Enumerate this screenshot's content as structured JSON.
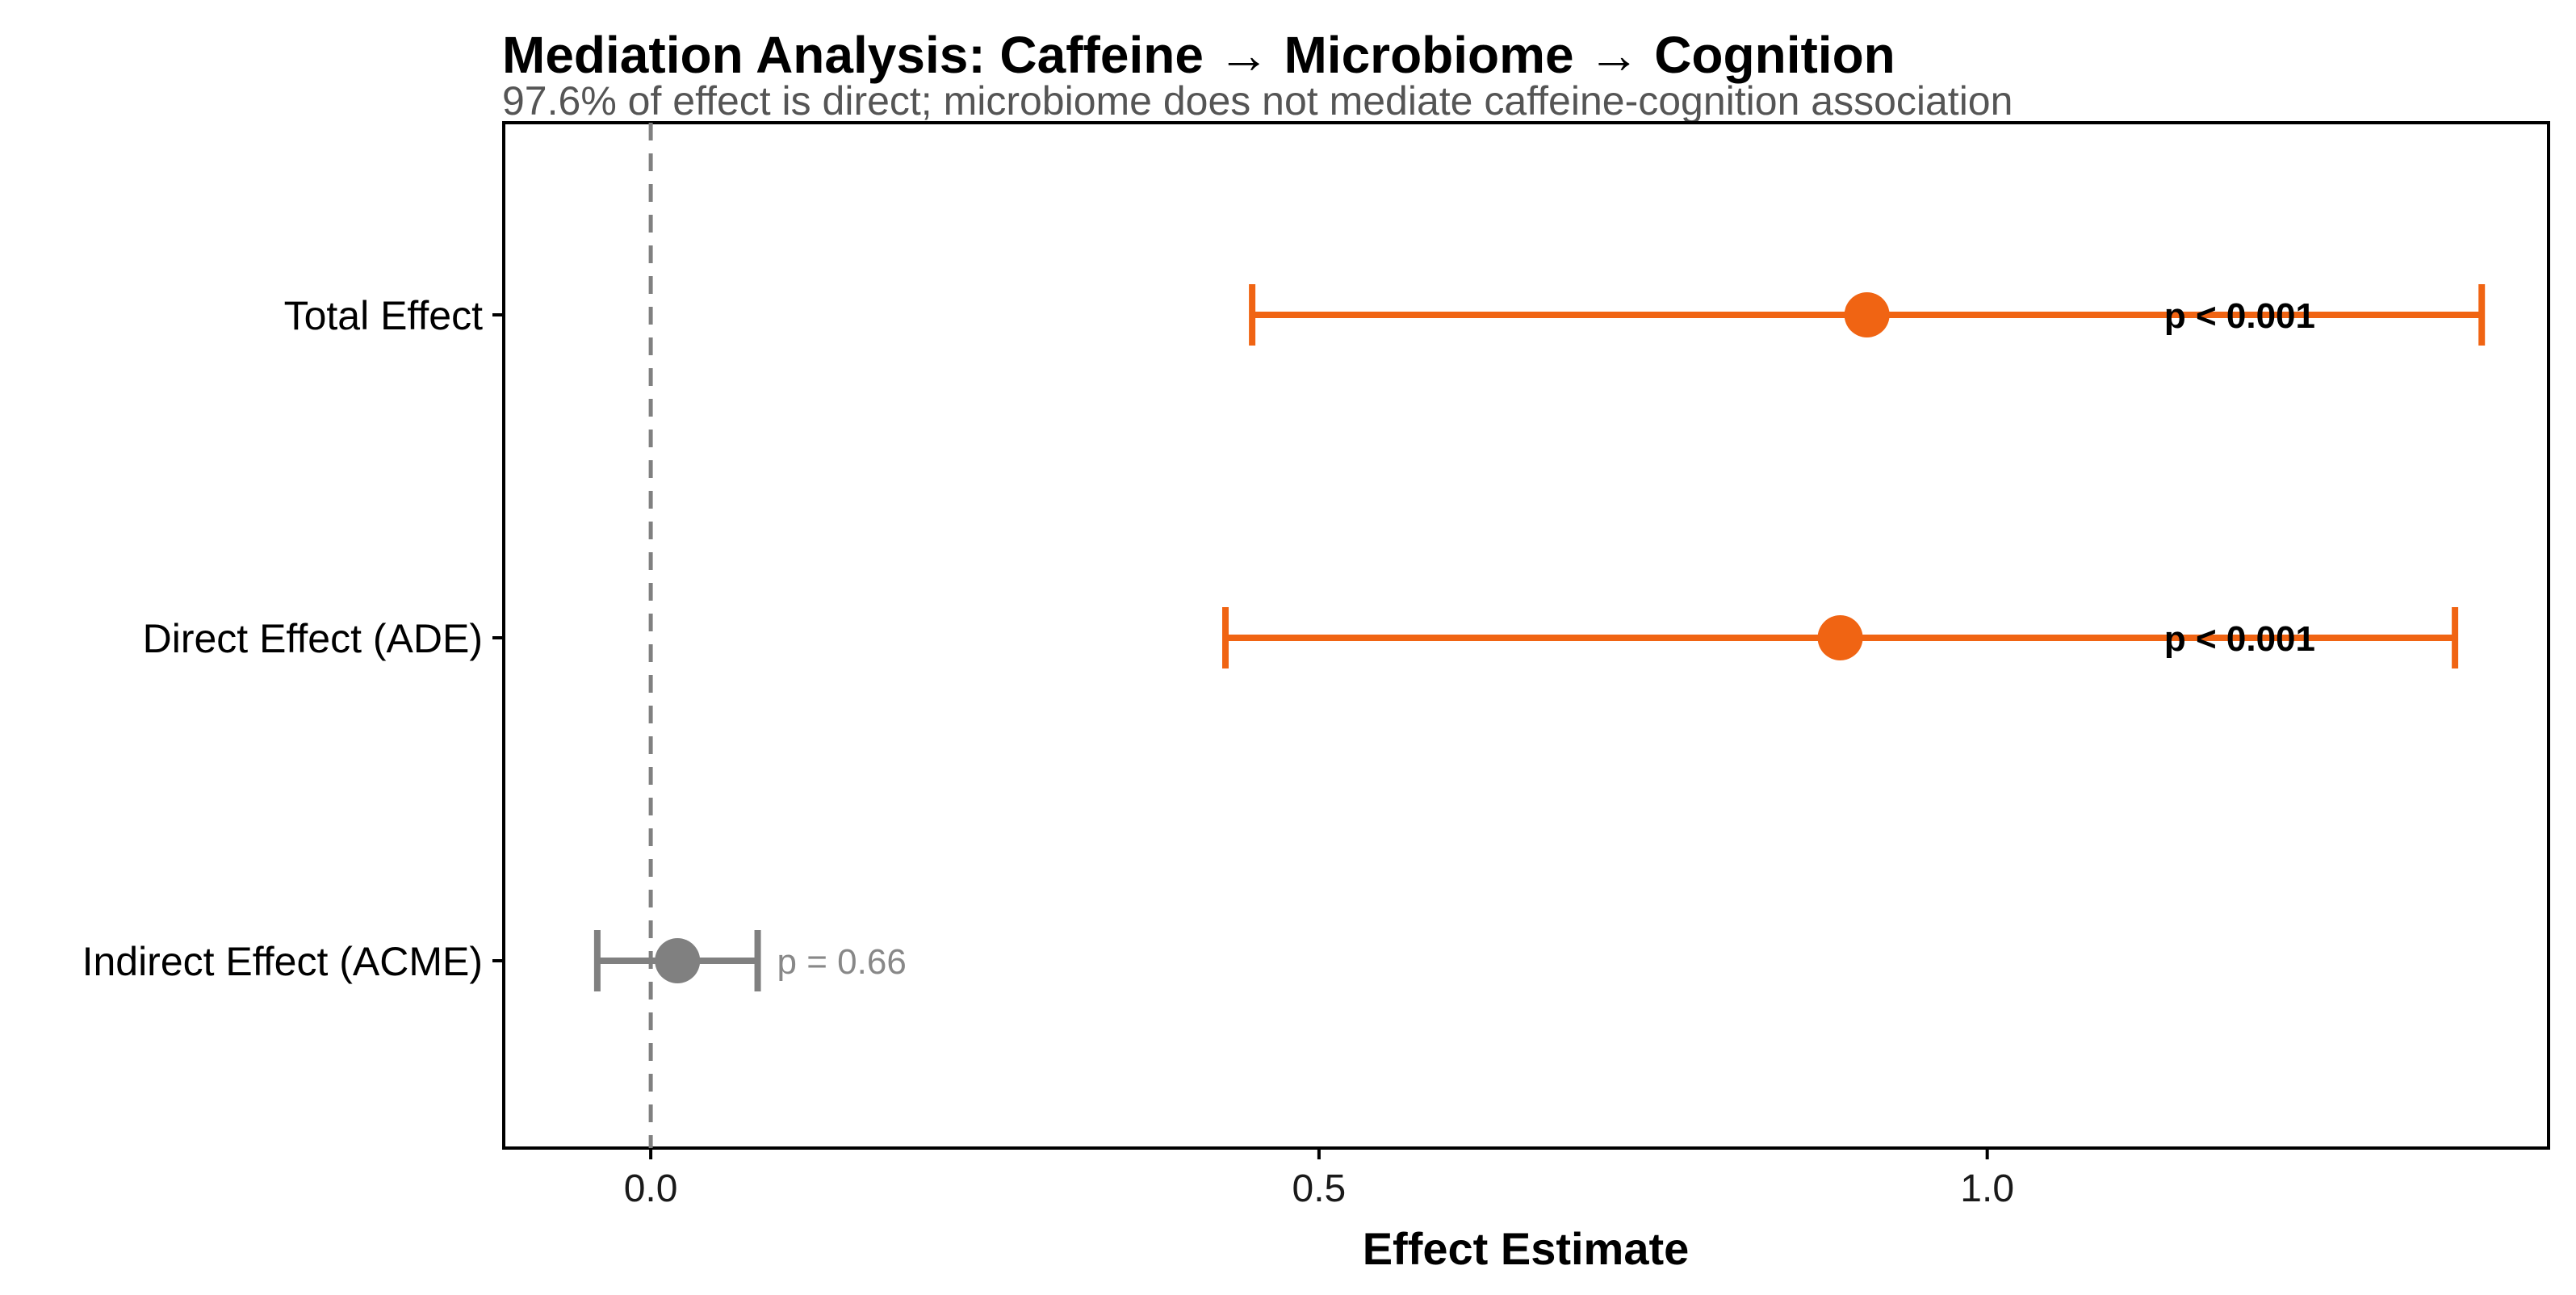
{
  "chart_data": {
    "type": "forest",
    "title": "Mediation Analysis: Caffeine → Microbiome → Cognition",
    "subtitle": "97.6% of effect is direct; microbiome does not mediate caffeine-cognition association",
    "xlabel": "Effect Estimate",
    "xlim": [
      -0.11,
      1.42
    ],
    "xticks": [
      0.0,
      0.5,
      1.0
    ],
    "xtick_labels": [
      "0.0",
      "0.5",
      "1.0"
    ],
    "reference_line": 0.0,
    "rows": [
      {
        "label": "Total Effect",
        "estimate": 0.91,
        "ci_low": 0.45,
        "ci_high": 1.37,
        "p_label": "p < 0.001",
        "significant": true
      },
      {
        "label": "Direct Effect (ADE)",
        "estimate": 0.89,
        "ci_low": 0.43,
        "ci_high": 1.35,
        "p_label": "p < 0.001",
        "significant": true
      },
      {
        "label": "Indirect Effect (ACME)",
        "estimate": 0.02,
        "ci_low": -0.04,
        "ci_high": 0.08,
        "p_label": "p = 0.66",
        "significant": false
      }
    ],
    "colors": {
      "significant": "#F06413",
      "nonsignificant": "#808080",
      "reference": "#808080",
      "frame": "#000000"
    }
  }
}
